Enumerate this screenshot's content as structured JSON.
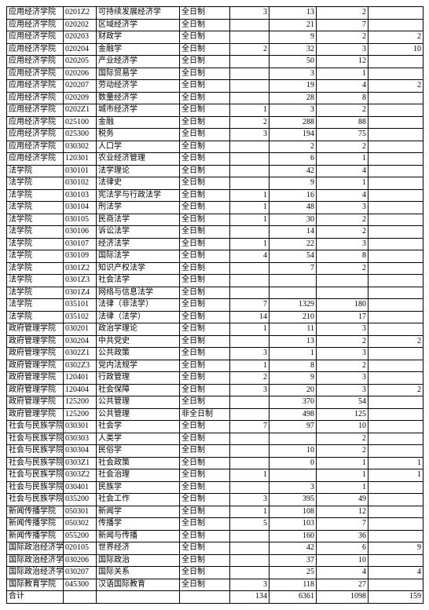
{
  "table": {
    "columns": [
      {
        "class": "c0"
      },
      {
        "class": "c1"
      },
      {
        "class": "c2"
      },
      {
        "class": "c3"
      },
      {
        "class": "c4"
      },
      {
        "class": "c5"
      },
      {
        "class": "c6"
      },
      {
        "class": "c7"
      }
    ],
    "rows": [
      [
        "应用经济学院",
        "0201Z2",
        "可持续发展经济学",
        "全日制",
        "3",
        "13",
        "2",
        ""
      ],
      [
        "应用经济学院",
        "020202",
        "区域经济学",
        "全日制",
        "",
        "21",
        "7",
        ""
      ],
      [
        "应用经济学院",
        "020203",
        "财政学",
        "全日制",
        "",
        "9",
        "2",
        "2"
      ],
      [
        "应用经济学院",
        "020204",
        "金融学",
        "全日制",
        "2",
        "32",
        "3",
        "10"
      ],
      [
        "应用经济学院",
        "020205",
        "产业经济学",
        "全日制",
        "",
        "50",
        "12",
        ""
      ],
      [
        "应用经济学院",
        "020206",
        "国际贸易学",
        "全日制",
        "",
        "3",
        "1",
        ""
      ],
      [
        "应用经济学院",
        "020207",
        "劳动经济学",
        "全日制",
        "",
        "19",
        "4",
        "2"
      ],
      [
        "应用经济学院",
        "020209",
        "数量经济学",
        "全日制",
        "",
        "28",
        "8",
        ""
      ],
      [
        "应用经济学院",
        "0202Z1",
        "城市经济学",
        "全日制",
        "1",
        "3",
        "2",
        ""
      ],
      [
        "应用经济学院",
        "025100",
        "金融",
        "全日制",
        "2",
        "288",
        "88",
        ""
      ],
      [
        "应用经济学院",
        "025300",
        "税务",
        "全日制",
        "3",
        "194",
        "75",
        ""
      ],
      [
        "应用经济学院",
        "030302",
        "人口学",
        "全日制",
        "",
        "2",
        "2",
        ""
      ],
      [
        "应用经济学院",
        "120301",
        "农业经济管理",
        "全日制",
        "",
        "6",
        "1",
        ""
      ],
      [
        "法学院",
        "030101",
        "法学理论",
        "全日制",
        "",
        "42",
        "4",
        ""
      ],
      [
        "法学院",
        "030102",
        "法律史",
        "全日制",
        "",
        "9",
        "1",
        ""
      ],
      [
        "法学院",
        "030103",
        "宪法学与行政法学",
        "全日制",
        "1",
        "16",
        "4",
        ""
      ],
      [
        "法学院",
        "030104",
        "刑法学",
        "全日制",
        "1",
        "48",
        "3",
        ""
      ],
      [
        "法学院",
        "030105",
        "民商法学",
        "全日制",
        "1",
        "30",
        "2",
        ""
      ],
      [
        "法学院",
        "030106",
        "诉讼法学",
        "全日制",
        "",
        "14",
        "2",
        ""
      ],
      [
        "法学院",
        "030107",
        "经济法学",
        "全日制",
        "1",
        "22",
        "3",
        ""
      ],
      [
        "法学院",
        "030109",
        "国际法学",
        "全日制",
        "4",
        "54",
        "8",
        ""
      ],
      [
        "法学院",
        "0301Z2",
        "知识产权法学",
        "全日制",
        "",
        "7",
        "2",
        ""
      ],
      [
        "法学院",
        "0301Z3",
        "社会法学",
        "全日制",
        "",
        "",
        "",
        ""
      ],
      [
        "法学院",
        "0301Z4",
        "网络与信息法学",
        "全日制",
        "",
        "",
        "",
        ""
      ],
      [
        "法学院",
        "035101",
        "法律（非法学）",
        "全日制",
        "7",
        "1329",
        "180",
        ""
      ],
      [
        "法学院",
        "035102",
        "法律（法学）",
        "全日制",
        "14",
        "210",
        "17",
        ""
      ],
      [
        "政府管理学院",
        "030201",
        "政治学理论",
        "全日制",
        "1",
        "11",
        "3",
        ""
      ],
      [
        "政府管理学院",
        "030204",
        "中共党史",
        "全日制",
        "",
        "13",
        "2",
        "2"
      ],
      [
        "政府管理学院",
        "0302Z1",
        "公共政策",
        "全日制",
        "3",
        "1",
        "3",
        ""
      ],
      [
        "政府管理学院",
        "0302Z3",
        "党内法规学",
        "全日制",
        "1",
        "8",
        "2",
        ""
      ],
      [
        "政府管理学院",
        "120401",
        "行政管理",
        "全日制",
        "2",
        "9",
        "3",
        ""
      ],
      [
        "政府管理学院",
        "120404",
        "社会保障",
        "全日制",
        "3",
        "20",
        "3",
        "2"
      ],
      [
        "政府管理学院",
        "125200",
        "公共管理",
        "全日制",
        "",
        "370",
        "54",
        ""
      ],
      [
        "政府管理学院",
        "125200",
        "公共管理",
        "非全日制",
        "",
        "498",
        "125",
        ""
      ],
      [
        "社会与民族学院",
        "030301",
        "社会学",
        "全日制",
        "7",
        "97",
        "10",
        ""
      ],
      [
        "社会与民族学院",
        "030303",
        "人类学",
        "全日制",
        "",
        "",
        "2",
        ""
      ],
      [
        "社会与民族学院",
        "030304",
        "民俗学",
        "全日制",
        "",
        "10",
        "2",
        ""
      ],
      [
        "社会与民族学院",
        "0303Z1",
        "社会政策",
        "全日制",
        "",
        "0",
        "1",
        "1"
      ],
      [
        "社会与民族学院",
        "0303Z2",
        "社会治理",
        "全日制",
        "1",
        "",
        "1",
        "1"
      ],
      [
        "社会与民族学院",
        "030401",
        "民族学",
        "全日制",
        "",
        "3",
        "1",
        ""
      ],
      [
        "社会与民族学院",
        "035200",
        "社会工作",
        "全日制",
        "3",
        "395",
        "49",
        ""
      ],
      [
        "新闻传播学院",
        "050301",
        "新闻学",
        "全日制",
        "1",
        "108",
        "12",
        ""
      ],
      [
        "新闻传播学院",
        "050302",
        "传播学",
        "全日制",
        "5",
        "103",
        "7",
        ""
      ],
      [
        "新闻传播学院",
        "055200",
        "新闻与传播",
        "全日制",
        "",
        "160",
        "36",
        ""
      ],
      [
        "国际政治经济学",
        "020105",
        "世界经济",
        "全日制",
        "",
        "42",
        "6",
        "9"
      ],
      [
        "国际政治经济学",
        "030206",
        "国际政治",
        "全日制",
        "",
        "37",
        "10",
        ""
      ],
      [
        "国际政治经济学",
        "030207",
        "国际关系",
        "全日制",
        "",
        "25",
        "4",
        "4"
      ],
      [
        "国际教育学院",
        "045300",
        "汉语国际教育",
        "全日制",
        "3",
        "118",
        "27",
        ""
      ],
      [
        "合计",
        "",
        "",
        "",
        "134",
        "6361",
        "1098",
        "159"
      ]
    ]
  }
}
